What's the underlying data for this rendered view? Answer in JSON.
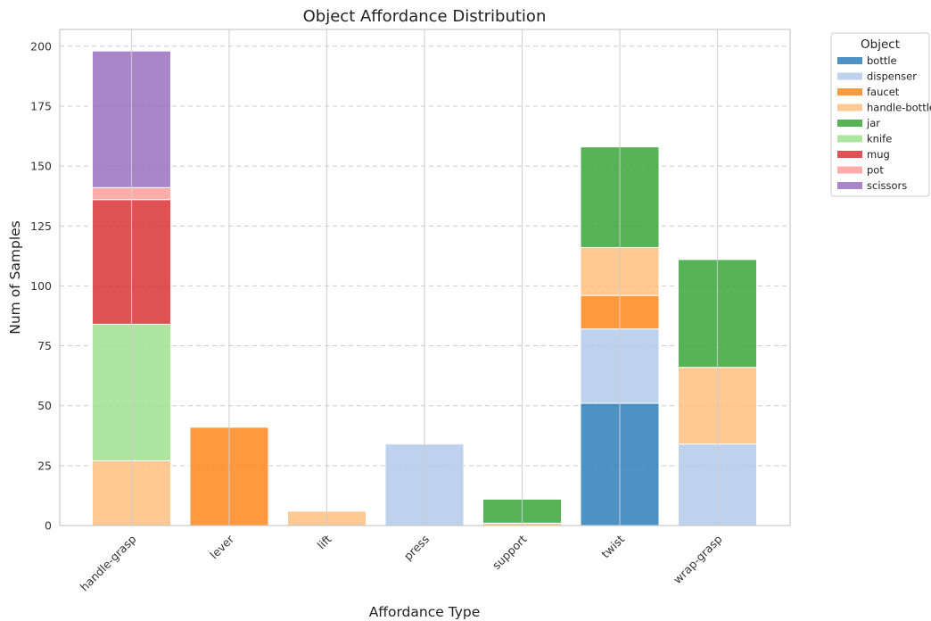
{
  "chart_data": {
    "type": "bar",
    "stacked": true,
    "title": "Object Affordance Distribution",
    "xlabel": "Affordance Type",
    "ylabel": "Num of Samples",
    "ylim": [
      0,
      207
    ],
    "yticks": [
      0,
      25,
      50,
      75,
      100,
      125,
      150,
      175,
      200
    ],
    "grid": true,
    "legend_title": "Object",
    "legend_position": "outside-top-right",
    "categories": [
      "handle-grasp",
      "lever",
      "lift",
      "press",
      "support",
      "twist",
      "wrap-grasp"
    ],
    "series": [
      {
        "name": "bottle",
        "color": "#1f77b4",
        "values": [
          0,
          0,
          0,
          0,
          0,
          51,
          0
        ]
      },
      {
        "name": "dispenser",
        "color": "#aec7e8",
        "values": [
          0,
          0,
          0,
          34,
          0,
          31,
          34
        ]
      },
      {
        "name": "faucet",
        "color": "#ff7f0e",
        "values": [
          0,
          41,
          0,
          0,
          0,
          14,
          0
        ]
      },
      {
        "name": "handle-bottle",
        "color": "#ffbb78",
        "values": [
          27,
          0,
          6,
          0,
          1,
          20,
          32
        ]
      },
      {
        "name": "jar",
        "color": "#2ca02c",
        "values": [
          0,
          0,
          0,
          0,
          10,
          42,
          45
        ]
      },
      {
        "name": "knife",
        "color": "#98df8a",
        "values": [
          57,
          0,
          0,
          0,
          0,
          0,
          0
        ]
      },
      {
        "name": "mug",
        "color": "#d62728",
        "values": [
          52,
          0,
          0,
          0,
          0,
          0,
          0
        ]
      },
      {
        "name": "pot",
        "color": "#ff9896",
        "values": [
          5,
          0,
          0,
          0,
          0,
          0,
          0
        ]
      },
      {
        "name": "scissors",
        "color": "#9467bd",
        "values": [
          57,
          0,
          0,
          0,
          0,
          0,
          0
        ]
      }
    ]
  }
}
